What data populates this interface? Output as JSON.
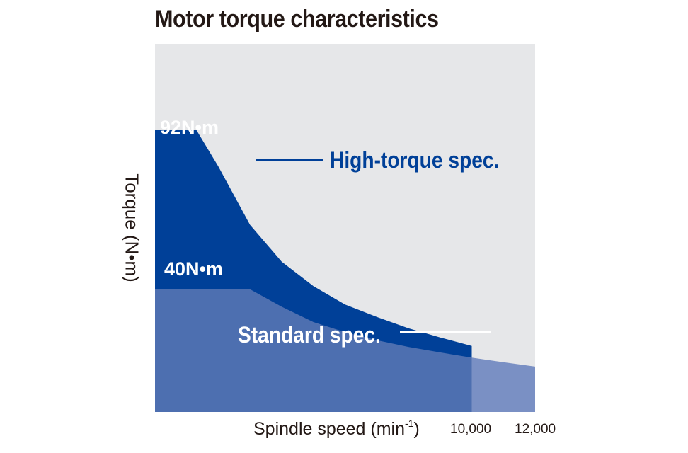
{
  "chart_data": {
    "type": "area",
    "title": "Motor torque characteristics",
    "ylabel": "Torque (N•m)",
    "xlabel": "Spindle speed (min",
    "xlabel_sup": "-1",
    "xlabel_close": ")",
    "x_ticks": [
      "10,000",
      "12,000"
    ],
    "xlim": [
      0,
      12000
    ],
    "ylim": [
      0,
      120
    ],
    "grid": false,
    "series": [
      {
        "name": "High-torque spec.",
        "max_torque_label": "92N•m",
        "color": "#004098",
        "x": [
          0,
          1300,
          2000,
          3000,
          4000,
          5000,
          6000,
          7000,
          8000,
          9000,
          10000
        ],
        "y": [
          92,
          92,
          80,
          61,
          49,
          41,
          35,
          31,
          27.3,
          24.3,
          21.5
        ]
      },
      {
        "name": "Standard spec.",
        "max_torque_label": "40N•m",
        "color": "#4d6fb0",
        "x": [
          0,
          3000,
          4000,
          5000,
          6000,
          7000,
          8000,
          9000,
          10000,
          11000,
          12000
        ],
        "y": [
          40,
          40,
          34.3,
          29.3,
          26,
          23.4,
          21.2,
          19.4,
          17.7,
          16.2,
          14.8
        ]
      }
    ],
    "extended_color": "#7a90c4",
    "background_color": "#e6e7e9"
  }
}
